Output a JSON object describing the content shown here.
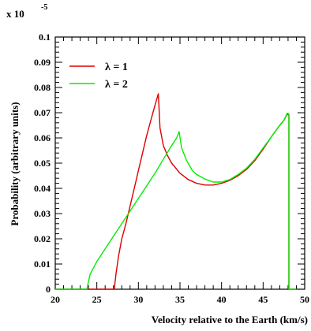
{
  "chart_data": {
    "type": "line",
    "title": "",
    "xlabel": "Velocity relative to the Earth (km/s)",
    "ylabel": "Probability (arbitrary units)",
    "y_multiplier": "x 10",
    "y_multiplier_exponent": "-5",
    "xlim": [
      20,
      50
    ],
    "ylim": [
      0,
      0.1
    ],
    "x_ticks": [
      "20",
      "25",
      "30",
      "35",
      "40",
      "45",
      "50"
    ],
    "y_ticks": [
      "0",
      "0.01",
      "0.02",
      "0.03",
      "0.04",
      "0.05",
      "0.06",
      "0.07",
      "0.08",
      "0.09",
      "0.1"
    ],
    "grid": false,
    "legend_position": "top-left",
    "series": [
      {
        "name": "λ = 1",
        "color": "#dd0000",
        "x": [
          20,
          27.1,
          27.3,
          27.6,
          28.0,
          28.5,
          29.0,
          29.5,
          30.0,
          30.5,
          31.0,
          31.5,
          32.0,
          32.4,
          32.6,
          33.0,
          33.5,
          34.0,
          35.0,
          36.0,
          37.0,
          38.0,
          39.0,
          40.0,
          41.0,
          42.0,
          43.0,
          44.0,
          45.0,
          46.0,
          47.0,
          47.5,
          47.9,
          48.1,
          48.1,
          49
        ],
        "y": [
          0,
          0,
          0.006,
          0.013,
          0.02,
          0.026,
          0.033,
          0.04,
          0.047,
          0.054,
          0.061,
          0.067,
          0.073,
          0.0775,
          0.064,
          0.057,
          0.053,
          0.05,
          0.046,
          0.0435,
          0.042,
          0.0413,
          0.0413,
          0.042,
          0.0432,
          0.045,
          0.0475,
          0.051,
          0.0555,
          0.0605,
          0.065,
          0.067,
          0.0695,
          0.069,
          0,
          0
        ]
      },
      {
        "name": "λ = 2",
        "color": "#00ee00",
        "x": [
          20,
          23.8,
          24.2,
          25.0,
          26.0,
          27.0,
          28.0,
          29.0,
          30.0,
          31.0,
          32.0,
          33.0,
          34.0,
          34.6,
          34.9,
          35.2,
          35.8,
          36.5,
          37.0,
          38.0,
          39.0,
          40.0,
          41.0,
          42.0,
          43.0,
          44.0,
          45.0,
          46.0,
          47.0,
          47.5,
          47.9,
          48.1,
          48.1,
          49
        ],
        "y": [
          0,
          0,
          0.006,
          0.011,
          0.016,
          0.021,
          0.026,
          0.031,
          0.036,
          0.041,
          0.046,
          0.0515,
          0.057,
          0.06,
          0.0625,
          0.056,
          0.051,
          0.047,
          0.0455,
          0.0437,
          0.0425,
          0.0425,
          0.0435,
          0.0455,
          0.048,
          0.0515,
          0.056,
          0.0605,
          0.065,
          0.067,
          0.0698,
          0.0695,
          0,
          0
        ]
      }
    ]
  }
}
